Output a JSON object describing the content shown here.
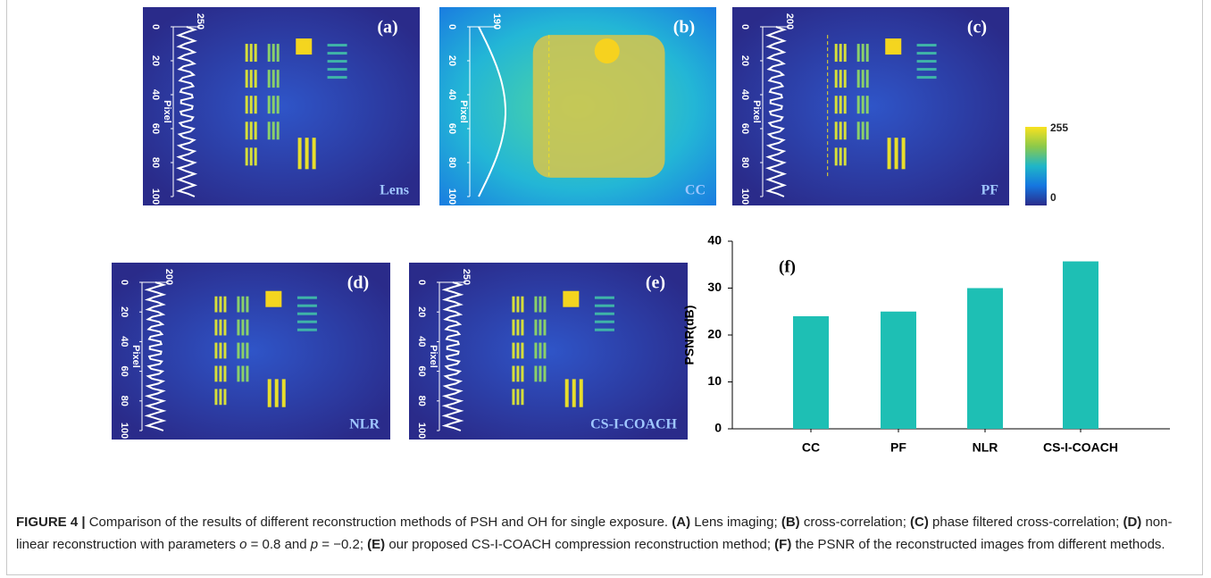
{
  "panels": [
    {
      "label": "(a)",
      "name": "Lens",
      "max": 250,
      "axis_label": "Pixel",
      "ticks": [
        0,
        20,
        40,
        60,
        80,
        100
      ]
    },
    {
      "label": "(b)",
      "name": "CC",
      "max": 190,
      "axis_label": "Pixel",
      "ticks": [
        0,
        20,
        40,
        60,
        80,
        100
      ]
    },
    {
      "label": "(c)",
      "name": "PF",
      "max": 200,
      "axis_label": "Pixel",
      "ticks": [
        0,
        20,
        40,
        60,
        80,
        100
      ]
    },
    {
      "label": "(d)",
      "name": "NLR",
      "max": 200,
      "axis_label": "Pixel",
      "ticks": [
        0,
        20,
        40,
        60,
        80,
        100
      ]
    },
    {
      "label": "(e)",
      "name": "CS-I-COACH",
      "max": 250,
      "axis_label": "Pixel",
      "ticks": [
        0,
        20,
        40,
        60,
        80,
        100
      ]
    }
  ],
  "colorbar": {
    "max": 255,
    "min": 0
  },
  "chart_data": {
    "type": "bar",
    "label": "(f)",
    "y_label": "PSNR(dB)",
    "categories": [
      "CC",
      "PF",
      "NLR",
      "CS-I-COACH"
    ],
    "values": [
      24,
      25,
      30,
      35.7
    ],
    "color": "#1ebfb4",
    "ylim": [
      0,
      40
    ],
    "yticks": [
      0,
      10,
      20,
      30,
      40
    ]
  },
  "caption": {
    "parts": [
      "FIGURE 4 |",
      " Comparison of the results of different reconstruction methods of PSH and OH for single exposure. ",
      "(A)",
      " Lens imaging; ",
      "(B)",
      " cross-correlation; ",
      "(C)",
      " phase filtered cross-correlation; ",
      "(D)",
      " non-linear reconstruction with parameters ",
      "o",
      " = 0.8 and ",
      "p",
      " = −0.2; ",
      "(E)",
      " our proposed CS-I-COACH compression reconstruction method; ",
      "(F)",
      " the PSNR of the reconstructed images from different methods."
    ]
  }
}
